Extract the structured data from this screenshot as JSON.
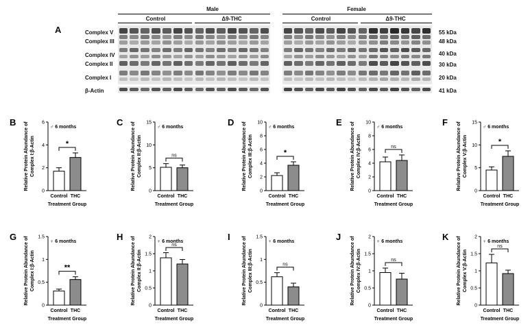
{
  "figure": {
    "panel_a_letter": "A",
    "sex_headers": [
      "Male",
      "Female"
    ],
    "group_headers": [
      "Control",
      "Δ9-THC",
      "Control",
      "Δ9-THC"
    ],
    "complex_labels": [
      "Complex V",
      "Complex III",
      "Complex IV",
      "Complex II",
      "Complex I"
    ],
    "actin_label": "β-Actin",
    "kda_labels": [
      "55 kDa",
      "48 kDa",
      "40 kDa",
      "30 kDa",
      "20 kDa"
    ],
    "actin_kda": "41 kDa"
  },
  "colors": {
    "control_bar": "#ffffff",
    "thc_bar": "#8c8c8c",
    "stroke": "#000000"
  },
  "chart_data": [
    {
      "panel": "B",
      "type": "bar",
      "sex_label": "♂ 6 months",
      "categories": [
        "Control",
        "THC"
      ],
      "values": [
        1.7,
        2.9
      ],
      "errors": [
        0.3,
        0.4
      ],
      "ylim": [
        0,
        6
      ],
      "yticks": [
        0,
        2,
        4,
        6
      ],
      "ylabel_line1": "Relative Protein Abundance of",
      "ylabel_line2": "Complex I:β-Actin",
      "xlabel": "Treatment Group",
      "significance": "*"
    },
    {
      "panel": "C",
      "type": "bar",
      "sex_label": "♂ 6 months",
      "categories": [
        "Control",
        "THC"
      ],
      "values": [
        5.1,
        5.0
      ],
      "errors": [
        0.8,
        0.6
      ],
      "ylim": [
        0,
        15
      ],
      "yticks": [
        0,
        5,
        10,
        15
      ],
      "ylabel_line1": "Relative Protein Abundance of",
      "ylabel_line2": "Complex II:β-Actin",
      "xlabel": "Treatment Group",
      "significance": "ns"
    },
    {
      "panel": "D",
      "type": "bar",
      "sex_label": "♂ 6 months",
      "categories": [
        "Control",
        "THC"
      ],
      "values": [
        2.2,
        3.7
      ],
      "errors": [
        0.4,
        0.5
      ],
      "ylim": [
        0,
        10
      ],
      "yticks": [
        0,
        2,
        4,
        6,
        8,
        10
      ],
      "ylabel_line1": "Relative Protein Abundance of",
      "ylabel_line2": "Complex III:β-Actin",
      "xlabel": "Treatment Group",
      "significance": "*"
    },
    {
      "panel": "E",
      "type": "bar",
      "sex_label": "♂ 6 months",
      "categories": [
        "Control",
        "THC"
      ],
      "values": [
        4.2,
        4.4
      ],
      "errors": [
        0.7,
        0.8
      ],
      "ylim": [
        0,
        10
      ],
      "yticks": [
        0,
        2,
        4,
        6,
        8,
        10
      ],
      "ylabel_line1": "Relative Protein Abundance of",
      "ylabel_line2": "Complex IV:β-Actin",
      "xlabel": "Treatment Group",
      "significance": "ns"
    },
    {
      "panel": "F",
      "type": "bar",
      "sex_label": "♂ 6 months",
      "categories": [
        "Control",
        "THC"
      ],
      "values": [
        4.5,
        7.5
      ],
      "errors": [
        0.7,
        1.2
      ],
      "ylim": [
        0,
        15
      ],
      "yticks": [
        0,
        5,
        10,
        15
      ],
      "ylabel_line1": "Relative Protein Abundance of",
      "ylabel_line2": "Complex V:β-Actin",
      "xlabel": "Treatment Group",
      "significance": "*"
    },
    {
      "panel": "G",
      "type": "bar",
      "sex_label": "♀ 6 months",
      "categories": [
        "Control",
        "THC"
      ],
      "values": [
        0.31,
        0.56
      ],
      "errors": [
        0.04,
        0.06
      ],
      "ylim": [
        0,
        1.5
      ],
      "yticks": [
        0.0,
        0.5,
        1.0,
        1.5
      ],
      "ylabel_line1": "Relative Protein Abundance of",
      "ylabel_line2": "Complex I:β-Actin",
      "xlabel": "Treatment Group",
      "significance": "**"
    },
    {
      "panel": "H",
      "type": "bar",
      "sex_label": "♀ 6 months",
      "categories": [
        "Control",
        "THC"
      ],
      "values": [
        1.38,
        1.2
      ],
      "errors": [
        0.15,
        0.13
      ],
      "ylim": [
        0,
        2.0
      ],
      "yticks": [
        0.0,
        0.5,
        1.0,
        1.5,
        2.0
      ],
      "ylabel_line1": "Relative Protein Abundance of",
      "ylabel_line2": "Complex II:β-Actin",
      "xlabel": "Treatment Group",
      "significance": "ns"
    },
    {
      "panel": "I",
      "type": "bar",
      "sex_label": "♀ 6 months",
      "categories": [
        "Control",
        "THC"
      ],
      "values": [
        0.62,
        0.4
      ],
      "errors": [
        0.09,
        0.08
      ],
      "ylim": [
        0,
        1.5
      ],
      "yticks": [
        0.0,
        0.5,
        1.0,
        1.5
      ],
      "ylabel_line1": "Relative Protein Abundance of",
      "ylabel_line2": "Complex III:β-Actin",
      "xlabel": "Treatment Group",
      "significance": "ns"
    },
    {
      "panel": "J",
      "type": "bar",
      "sex_label": "♀ 6 months",
      "categories": [
        "Control",
        "THC"
      ],
      "values": [
        0.95,
        0.76
      ],
      "errors": [
        0.13,
        0.17
      ],
      "ylim": [
        0,
        2.0
      ],
      "yticks": [
        0.0,
        0.5,
        1.0,
        1.5,
        2.0
      ],
      "ylabel_line1": "Relative Protein Abundance of",
      "ylabel_line2": "Complex IV:β-Actin",
      "xlabel": "Treatment Group",
      "significance": "ns"
    },
    {
      "panel": "K",
      "type": "bar",
      "sex_label": "♀ 6 months",
      "categories": [
        "Control",
        "THC"
      ],
      "values": [
        1.23,
        0.92
      ],
      "errors": [
        0.25,
        0.1
      ],
      "ylim": [
        0,
        2.0
      ],
      "yticks": [
        0.0,
        0.5,
        1.0,
        1.5,
        2.0
      ],
      "ylabel_line1": "Relative Protein Abundance of",
      "ylabel_line2": "Complex V:β-Actin",
      "xlabel": "Treatment Group",
      "significance": "ns"
    }
  ]
}
